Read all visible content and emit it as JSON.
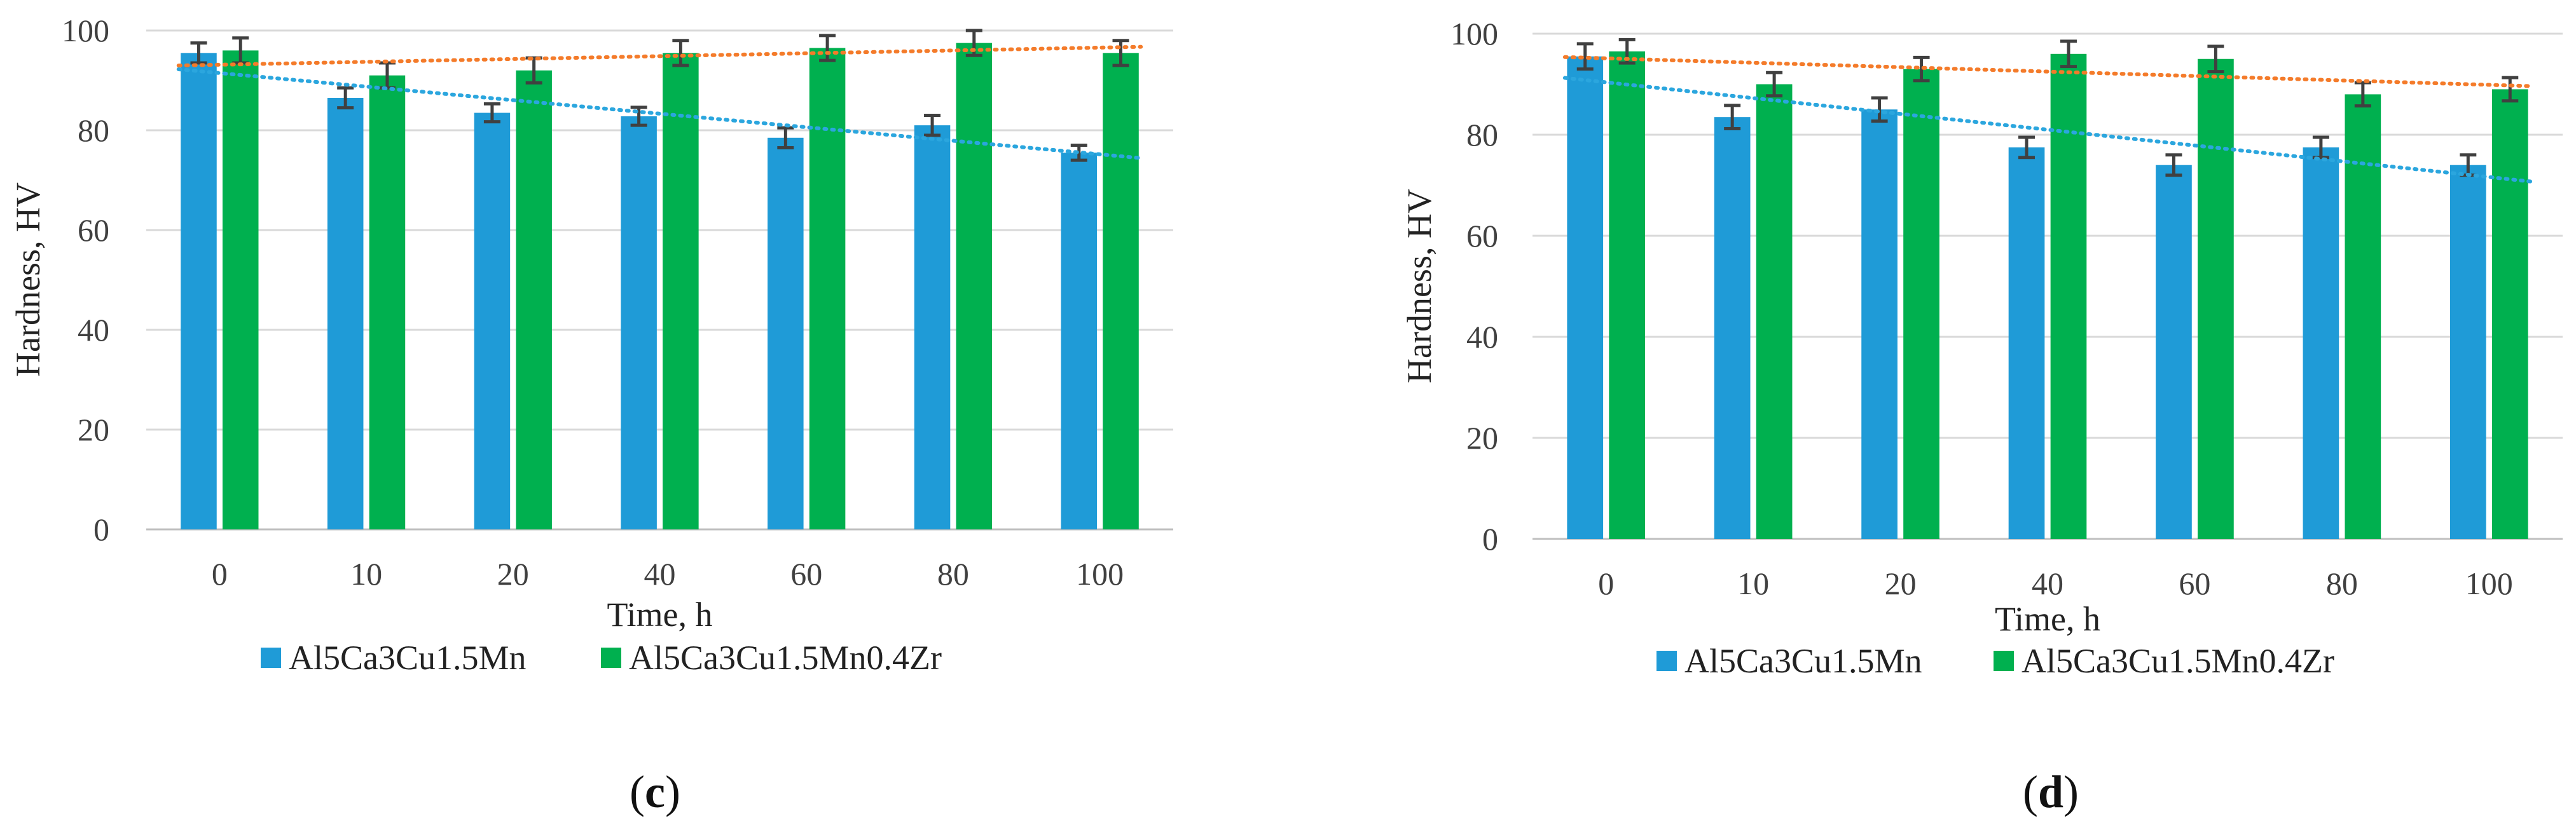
{
  "chart_data": [
    {
      "type": "bar",
      "panel": "c",
      "panel_label": {
        "open": "(",
        "letter": "c",
        "close": ")"
      },
      "title": "",
      "xlabel": "Time, h",
      "ylabel": "Hardness, HV",
      "categories": [
        "0",
        "10",
        "20",
        "40",
        "60",
        "80",
        "100"
      ],
      "ylim": [
        0,
        100
      ],
      "yticks": [
        "0",
        "20",
        "40",
        "60",
        "80",
        "100"
      ],
      "grid": true,
      "legend_position": "bottom",
      "series": [
        {
          "name": "Al5Ca3Cu1.5Mn",
          "color": "#1f9bd7",
          "trend_color": "#2ba6de",
          "values": [
            95.5,
            86.5,
            83.5,
            82.8,
            78.5,
            81.0,
            75.5
          ],
          "errors": [
            2.0,
            2.0,
            1.8,
            1.8,
            2.0,
            2.0,
            1.5
          ]
        },
        {
          "name": "Al5Ca3Cu1.5Mn0.4Zr",
          "color": "#00b04f",
          "trend_color": "#f47b2a",
          "values": [
            96.0,
            91.0,
            92.0,
            95.5,
            96.5,
            97.5,
            95.5
          ],
          "errors": [
            2.5,
            2.5,
            2.5,
            2.5,
            2.5,
            2.5,
            2.5
          ]
        }
      ]
    },
    {
      "type": "bar",
      "panel": "d",
      "panel_label": {
        "open": "(",
        "letter": "d",
        "close": ")"
      },
      "title": "",
      "xlabel": "Time, h",
      "ylabel": "Hardness, HV",
      "categories": [
        "0",
        "10",
        "20",
        "40",
        "60",
        "80",
        "100"
      ],
      "ylim": [
        0,
        100
      ],
      "yticks": [
        "0",
        "20",
        "40",
        "60",
        "80",
        "100"
      ],
      "grid": true,
      "legend_position": "bottom",
      "series": [
        {
          "name": "Al5Ca3Cu1.5Mn",
          "color": "#1f9bd7",
          "trend_color": "#2ba6de",
          "values": [
            95.5,
            83.5,
            85.0,
            77.5,
            74.0,
            77.5,
            74.0
          ],
          "errors": [
            2.5,
            2.3,
            2.3,
            2.0,
            2.0,
            2.0,
            2.0
          ]
        },
        {
          "name": "Al5Ca3Cu1.5Mn0.4Zr",
          "color": "#00b04f",
          "trend_color": "#f47b2a",
          "values": [
            96.5,
            90.0,
            93.0,
            96.0,
            95.0,
            88.0,
            89.0
          ],
          "errors": [
            2.3,
            2.3,
            2.3,
            2.5,
            2.5,
            2.3,
            2.3
          ]
        }
      ]
    }
  ]
}
